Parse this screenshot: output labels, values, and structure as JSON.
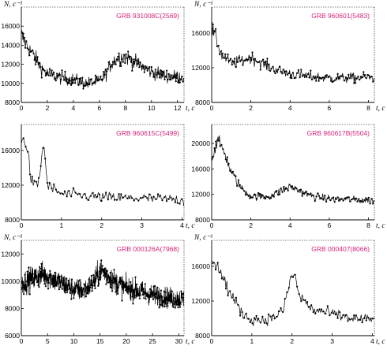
{
  "chart_data": [
    {
      "type": "line",
      "title": "GRB 931008C(2569)",
      "ylabel": "N, c⁻¹",
      "xlabel": "t, c",
      "xlim": [
        0,
        12.5
      ],
      "ylim": [
        8000,
        18000
      ],
      "xticks": [
        0,
        2,
        4,
        6,
        8,
        10,
        12
      ],
      "yticks": [
        8000,
        10000,
        12000,
        14000,
        16000
      ],
      "grid": false,
      "series": [
        {
          "x": [
            0,
            0.5,
            1,
            1.5,
            2,
            3,
            4,
            5,
            6,
            6.5,
            7,
            7.5,
            8,
            9,
            10,
            11,
            12,
            12.5
          ],
          "values": [
            15000,
            13800,
            12800,
            11700,
            11000,
            10600,
            10400,
            10000,
            10200,
            11000,
            12300,
            12700,
            12800,
            12000,
            11200,
            10800,
            10700,
            10700
          ]
        }
      ]
    },
    {
      "type": "line",
      "title": "GRB 960601(5483)",
      "ylabel": "N, c⁻¹",
      "xlabel": "t, c",
      "xlim": [
        0,
        8.3
      ],
      "ylim": [
        8000,
        19000
      ],
      "xticks": [
        0,
        2,
        4,
        6,
        8
      ],
      "yticks": [
        8000,
        12000,
        16000
      ],
      "grid": false,
      "series": [
        {
          "x": [
            0,
            0.2,
            0.5,
            1,
            1.5,
            2,
            2.5,
            3,
            4,
            5,
            6,
            7,
            8,
            8.3
          ],
          "values": [
            16500,
            15500,
            13500,
            12500,
            12800,
            13200,
            12600,
            12000,
            11300,
            11000,
            10800,
            10800,
            10900,
            10800
          ]
        }
      ]
    },
    {
      "type": "line",
      "title": "GRB 960615C(5499)",
      "ylabel": "",
      "xlabel": "t, c",
      "xlim": [
        0,
        4.05
      ],
      "ylim": [
        8000,
        19000
      ],
      "xticks": [
        0,
        1,
        2,
        3,
        4
      ],
      "yticks": [
        8000,
        12000,
        16000
      ],
      "grid": false,
      "series": [
        {
          "x": [
            0,
            0.08,
            0.15,
            0.25,
            0.35,
            0.45,
            0.55,
            0.65,
            0.8,
            1,
            1.5,
            2,
            2.5,
            3,
            3.5,
            4.05
          ],
          "values": [
            16500,
            17800,
            16000,
            12500,
            11800,
            12600,
            17200,
            12000,
            11500,
            11000,
            10800,
            10600,
            10500,
            10500,
            10400,
            10300
          ]
        }
      ]
    },
    {
      "type": "line",
      "title": "GRB 960617B(5504)",
      "ylabel": "",
      "xlabel": "t, c",
      "xlim": [
        0,
        8.3
      ],
      "ylim": [
        8000,
        23000
      ],
      "xticks": [
        0,
        2,
        4,
        6,
        8
      ],
      "yticks": [
        8000,
        12000,
        16000,
        20000
      ],
      "grid": false,
      "series": [
        {
          "x": [
            0,
            0.3,
            0.6,
            1,
            1.5,
            2,
            2.5,
            3,
            3.5,
            4,
            4.5,
            5,
            6,
            7,
            8.3
          ],
          "values": [
            17500,
            20500,
            19000,
            15500,
            13000,
            11800,
            11600,
            11800,
            12500,
            13200,
            12600,
            11800,
            11300,
            11200,
            11000
          ]
        }
      ]
    },
    {
      "type": "line",
      "title": "GRB 000126A(7968)",
      "ylabel": "N, c⁻¹",
      "xlabel": "t, c",
      "xlim": [
        0,
        31
      ],
      "ylim": [
        6000,
        13000
      ],
      "xticks": [
        0,
        5,
        10,
        15,
        20,
        25,
        30
      ],
      "yticks": [
        6000,
        8000,
        10000,
        12000
      ],
      "grid": false,
      "series": [
        {
          "x": [
            0,
            2,
            4,
            6,
            8,
            10,
            12,
            14,
            15,
            16,
            18,
            20,
            22,
            24,
            26,
            28,
            30,
            31
          ],
          "values": [
            9800,
            10200,
            10500,
            10200,
            9800,
            9400,
            9300,
            10000,
            10800,
            10600,
            9900,
            9500,
            9300,
            9100,
            8900,
            8800,
            8700,
            8700
          ]
        }
      ]
    },
    {
      "type": "line",
      "title": "GRB 000407(8066)",
      "ylabel": "N, c⁻¹",
      "xlabel": "t, c",
      "xlim": [
        0,
        4.05
      ],
      "ylim": [
        8000,
        19000
      ],
      "xticks": [
        0,
        1,
        2,
        3,
        4
      ],
      "yticks": [
        8000,
        12000,
        16000
      ],
      "grid": false,
      "series": [
        {
          "x": [
            0,
            0.1,
            0.3,
            0.5,
            0.7,
            0.9,
            1.2,
            1.5,
            1.8,
            1.95,
            2.05,
            2.2,
            2.5,
            3,
            3.5,
            4.05
          ],
          "values": [
            17000,
            16500,
            14500,
            12500,
            11000,
            10000,
            9800,
            10000,
            11000,
            14500,
            15000,
            12500,
            11000,
            10500,
            10000,
            9800
          ]
        }
      ]
    }
  ]
}
